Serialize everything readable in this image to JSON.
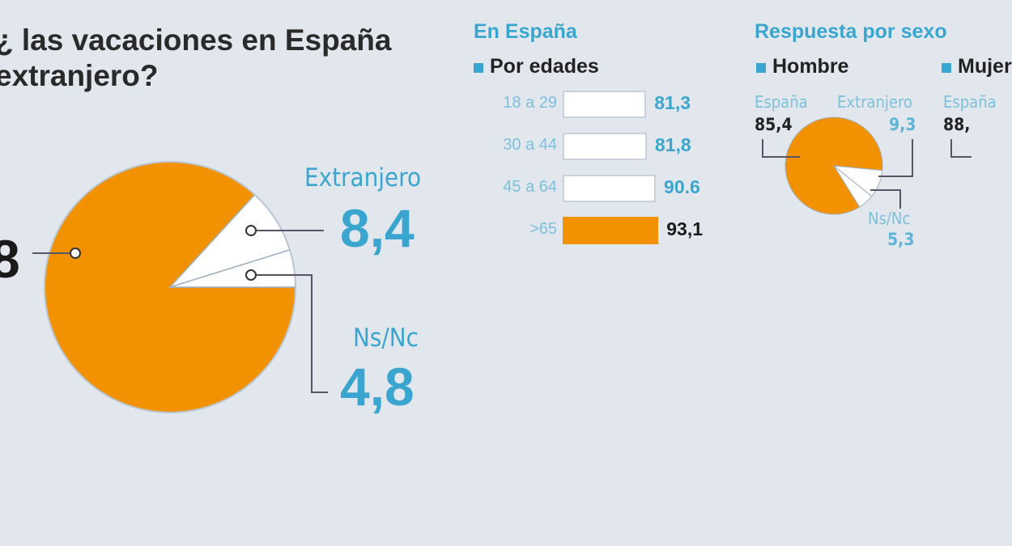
{
  "title": {
    "line1": "¿ las vacaciones en España",
    "line2": "extranjero?"
  },
  "colors": {
    "orange": "#f39200",
    "blue": "#3aa6cf",
    "background": "#e2e7ee"
  },
  "main_pie": {
    "spain_value_visible": "8",
    "extranjero": {
      "label": "Extranjero",
      "value": "8,4"
    },
    "nsnc": {
      "label": "Ns/Nc",
      "value": "4,8"
    }
  },
  "age_section": {
    "heading": "En España",
    "subheading": "Por edades"
  },
  "sex_section": {
    "heading": "Respuesta por sexo",
    "hombre": {
      "label": "Hombre",
      "spain_label": "España",
      "spain_value": "85,4",
      "extranjero_label": "Extranjero",
      "extranjero_value": "9,3",
      "nsnc_label": "Ns/Nc",
      "nsnc_value": "5,3"
    },
    "mujer": {
      "label": "Mujer",
      "spain_label": "España",
      "spain_value": "88,"
    }
  },
  "chart_data": [
    {
      "type": "pie",
      "title": "",
      "slices": [
        {
          "name": "España",
          "value": 86.8
        },
        {
          "name": "Extranjero",
          "value": 8.4
        },
        {
          "name": "Ns/Nc",
          "value": 4.8
        }
      ]
    },
    {
      "type": "bar",
      "title": "En España",
      "subtitle": "Por edades",
      "orientation": "horizontal",
      "categories": [
        "18 a 29",
        "30 a 44",
        "45 a 64",
        ">65"
      ],
      "values": [
        81.3,
        81.8,
        90.6,
        93.1
      ],
      "labels": [
        "81,3",
        "81,8",
        "90.6",
        "93,1"
      ]
    },
    {
      "type": "pie",
      "title": "Hombre",
      "slices": [
        {
          "name": "España",
          "value": 85.4
        },
        {
          "name": "Extranjero",
          "value": 9.3
        },
        {
          "name": "Ns/Nc",
          "value": 5.3
        }
      ]
    }
  ]
}
